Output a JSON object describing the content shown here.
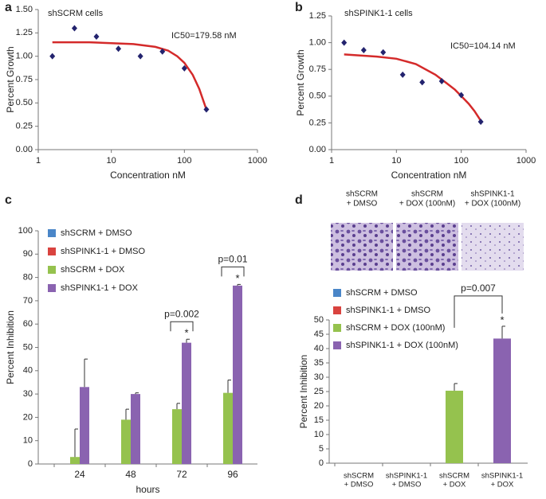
{
  "chart_data": [
    {
      "type": "scatter",
      "panel_label": "a",
      "title": "shSCRM cells",
      "annotation": "IC50=179.58 nM",
      "xlabel": "Concentration nM",
      "ylabel": "Percent Growth",
      "xscale": "log",
      "xlim": [
        1,
        1000
      ],
      "xticks": [
        1,
        10,
        100,
        1000
      ],
      "ylim": [
        0,
        1.5
      ],
      "yticks": [
        {
          "value": 0,
          "label": "0.00"
        },
        {
          "value": 0.25,
          "label": "0.25"
        },
        {
          "value": 0.5,
          "label": "0.50"
        },
        {
          "value": 0.75,
          "label": "0.75"
        },
        {
          "value": 1,
          "label": "1.00"
        },
        {
          "value": 1.25,
          "label": "1.25"
        },
        {
          "value": 1.5,
          "label": "1.50"
        }
      ],
      "points": {
        "color": "#23236e",
        "x": [
          1.56,
          3.13,
          6.25,
          12.5,
          25,
          50,
          100,
          200
        ],
        "values": [
          1.0,
          1.3,
          1.21,
          1.08,
          1.0,
          1.05,
          0.87,
          0.43
        ]
      },
      "fit": {
        "color": "#d42a2a",
        "x": [
          1.56,
          5,
          10,
          20,
          40,
          60,
          80,
          100,
          130,
          160,
          200
        ],
        "values": [
          1.15,
          1.15,
          1.14,
          1.13,
          1.1,
          1.06,
          1.0,
          0.93,
          0.8,
          0.65,
          0.43
        ]
      }
    },
    {
      "type": "scatter",
      "panel_label": "b",
      "title": "shSPINK1-1 cells",
      "annotation": "IC50=104.14 nM",
      "xlabel": "Concentration nM",
      "ylabel": "Percent Growth",
      "xscale": "log",
      "xlim": [
        1,
        1000
      ],
      "xticks": [
        1,
        10,
        100,
        1000
      ],
      "ylim": [
        0,
        1.25
      ],
      "yticks": [
        {
          "value": 0,
          "label": "0.00"
        },
        {
          "value": 0.25,
          "label": "0.25"
        },
        {
          "value": 0.5,
          "label": "0.50"
        },
        {
          "value": 0.75,
          "label": "0.75"
        },
        {
          "value": 1,
          "label": "1.00"
        },
        {
          "value": 1.25,
          "label": "1.25"
        }
      ],
      "points": {
        "color": "#23236e",
        "x": [
          1.56,
          3.13,
          6.25,
          12.5,
          25,
          50,
          100,
          200
        ],
        "values": [
          1.0,
          0.93,
          0.91,
          0.7,
          0.63,
          0.64,
          0.51,
          0.26
        ]
      },
      "fit": {
        "color": "#d42a2a",
        "x": [
          1.56,
          5,
          10,
          20,
          40,
          60,
          80,
          100,
          130,
          160,
          200
        ],
        "values": [
          0.89,
          0.87,
          0.85,
          0.8,
          0.7,
          0.62,
          0.56,
          0.5,
          0.43,
          0.36,
          0.27
        ]
      }
    },
    {
      "type": "bar",
      "panel_label": "c",
      "xlabel": "hours",
      "ylabel": "Percent Inhibition",
      "categories": [
        "24",
        "48",
        "72",
        "96"
      ],
      "ylim": [
        0,
        100
      ],
      "yticks": [
        0,
        10,
        20,
        30,
        40,
        50,
        60,
        70,
        80,
        90,
        100
      ],
      "p_values": [
        null,
        null,
        "p=0.002",
        "p=0.01"
      ],
      "series": [
        {
          "name": "shSCRM + DMSO",
          "color": "#4a86c8",
          "values": [
            0,
            0,
            0,
            0
          ]
        },
        {
          "name": "shSPINK1-1 + DMSO",
          "color": "#d9433f",
          "values": [
            0,
            0,
            0,
            0
          ]
        },
        {
          "name": "shSCRM + DOX",
          "color": "#95c24e",
          "values": [
            3,
            19,
            23.5,
            30.5
          ],
          "errors": [
            12,
            4.5,
            2.5,
            5.5
          ]
        },
        {
          "name": "shSPINK1-1 + DOX",
          "color": "#8a63b0",
          "values": [
            33,
            30,
            52,
            76.5
          ],
          "errors": [
            12,
            0.5,
            1.5,
            0.5
          ],
          "asterisks": [
            null,
            null,
            "*",
            "*"
          ]
        }
      ]
    },
    {
      "type": "bar",
      "panel_label": "d",
      "ylabel": "Percent Inhibition",
      "image_labels": [
        [
          "shSCRM",
          "+ DMSO"
        ],
        [
          "shSCRM",
          "+ DOX (100nM)"
        ],
        [
          "shSPINK1-1",
          "+ DOX (100nM)"
        ]
      ],
      "categories": [
        [
          "shSCRM",
          "+ DMSO"
        ],
        [
          "shSPINK1-1",
          "+ DMSO"
        ],
        [
          "shSCRM",
          "+ DOX"
        ],
        [
          "shSPINK1-1",
          "+ DOX"
        ]
      ],
      "ylim": [
        0,
        50
      ],
      "yticks": [
        0,
        5,
        10,
        15,
        20,
        25,
        30,
        35,
        40,
        45,
        50
      ],
      "p_values": [
        null,
        null,
        null,
        "p=0.007"
      ],
      "series": [
        {
          "name": "shSCRM + DMSO",
          "color": "#4a86c8",
          "values": [
            0,
            null,
            null,
            null
          ]
        },
        {
          "name": "shSPINK1-1 + DMSO",
          "color": "#d9433f",
          "values": [
            null,
            0,
            null,
            null
          ]
        },
        {
          "name": "shSCRM + DOX (100nM)",
          "color": "#95c24e",
          "values": [
            null,
            null,
            25.3,
            null
          ],
          "errors": [
            null,
            null,
            2.5,
            null
          ]
        },
        {
          "name": "shSPINK1-1 + DOX (100nM)",
          "color": "#8a63b0",
          "values": [
            null,
            null,
            null,
            43.5
          ],
          "errors": [
            null,
            null,
            null,
            4.3
          ],
          "asterisks": [
            null,
            null,
            null,
            "*"
          ]
        }
      ]
    }
  ]
}
